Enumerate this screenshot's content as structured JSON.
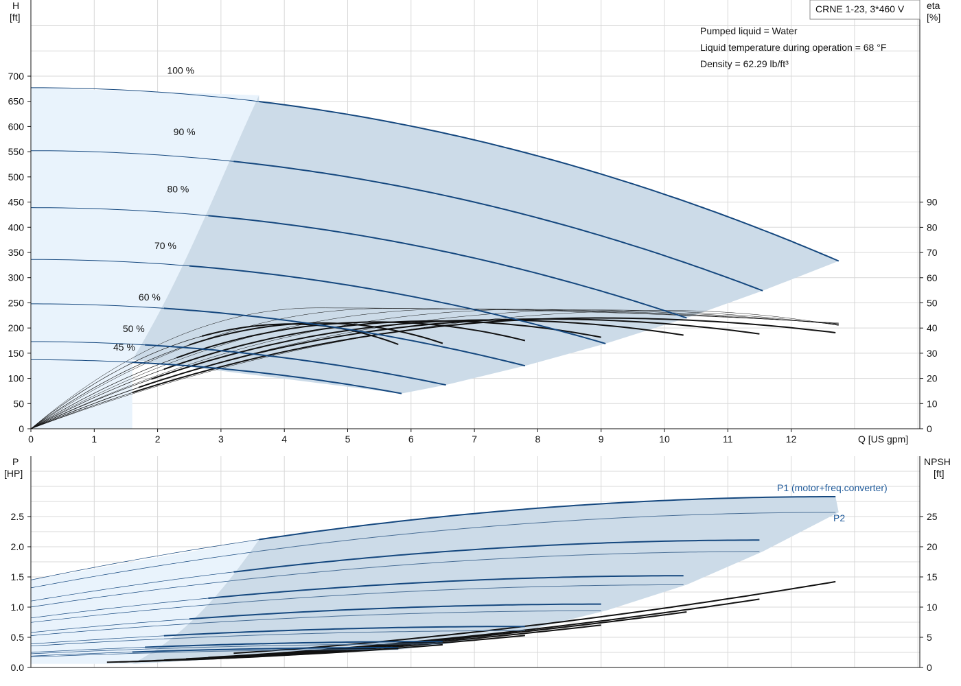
{
  "chart_data": [
    {
      "type": "line",
      "panel": "top",
      "title": "CRNE 1-23, 3*460 V",
      "info": [
        "Pumped liquid = Water",
        "Liquid temperature during operation = 68 °F",
        "Density = 62.29 lb/ft³"
      ],
      "xlabel": "Q [US gpm]",
      "ylabel": [
        "H",
        "[ft]"
      ],
      "y2label": [
        "eta",
        "[%]"
      ],
      "xlim": [
        0,
        13
      ],
      "ylim": [
        0,
        800
      ],
      "y2lim": [
        0,
        100
      ],
      "x_ticks": [
        "0",
        "1",
        "2",
        "3",
        "4",
        "5",
        "6",
        "7",
        "8",
        "9",
        "10",
        "11",
        "12"
      ],
      "y_ticks": [
        "0",
        "50",
        "100",
        "150",
        "200",
        "250",
        "300",
        "350",
        "400",
        "450",
        "500",
        "550",
        "600",
        "650",
        "700"
      ],
      "y2_ticks": [
        "0",
        "10",
        "20",
        "30",
        "40",
        "50",
        "60",
        "70",
        "80",
        "90"
      ],
      "grid": true,
      "operating_range_colors": {
        "low_flow": "#e9f3fc",
        "main": "#ccdbe8"
      },
      "curve_color": "#14477e",
      "speed_curves": [
        {
          "label": "100 %",
          "H0": 677,
          "qmax": 12.75,
          "Hend": 333
        },
        {
          "label": "90 %",
          "H0": 552,
          "qmax": 11.55,
          "Hend": 274
        },
        {
          "label": "80 %",
          "H0": 439,
          "qmax": 10.35,
          "Hend": 220
        },
        {
          "label": "70 %",
          "H0": 336,
          "qmax": 9.07,
          "Hend": 169
        },
        {
          "label": "60 %",
          "H0": 248,
          "qmax": 7.8,
          "Hend": 125
        },
        {
          "label": "50 %",
          "H0": 173,
          "qmax": 6.55,
          "Hend": 87
        },
        {
          "label": "45 %",
          "H0": 137,
          "qmax": 5.85,
          "Hend": 70
        }
      ],
      "efficiency_peak_percent": 44
    },
    {
      "type": "line",
      "panel": "bottom",
      "ylabel": [
        "P",
        "[HP]"
      ],
      "y2label": [
        "NPSH",
        "[ft]"
      ],
      "xlim": [
        0,
        13
      ],
      "ylim": [
        0,
        3
      ],
      "y2lim": [
        0,
        30
      ],
      "y_ticks": [
        "0.0",
        "0.5",
        "1.0",
        "1.5",
        "2.0",
        "2.5"
      ],
      "y2_ticks": [
        "0",
        "5",
        "10",
        "15",
        "20",
        "25"
      ],
      "grid": true,
      "series_labels": {
        "p1": "P1 (motor+freq.converter)",
        "p2": "P2"
      },
      "p1_at_qmax": [
        2.83,
        2.11,
        1.52,
        1.05,
        0.68,
        0.43,
        0.33
      ],
      "p2_at_qmax": [
        2.57,
        1.92,
        1.37,
        0.94,
        0.61,
        0.39,
        0.3
      ],
      "npsh_at_qmax": [
        13.7,
        11.2,
        9.0,
        6.9,
        5.1,
        3.6,
        3.0
      ]
    }
  ]
}
